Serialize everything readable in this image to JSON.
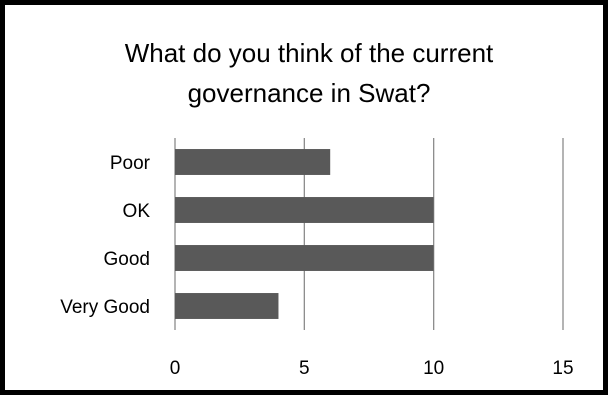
{
  "chart_data": {
    "type": "bar",
    "orientation": "horizontal",
    "title": "What do you think of the current governance in Swat?",
    "title_lines": [
      "What do you think of the current",
      "governance in Swat?"
    ],
    "categories": [
      "Poor",
      "OK",
      "Good",
      "Very Good"
    ],
    "values": [
      6,
      10,
      10,
      4
    ],
    "xlim": [
      0,
      15
    ],
    "x_ticks": [
      "0",
      "5",
      "10",
      "15"
    ],
    "grid": "vertical",
    "legend": "none",
    "colors": {
      "bar": "#595959",
      "grid": "#8c8c8c",
      "border": "#000000"
    }
  }
}
